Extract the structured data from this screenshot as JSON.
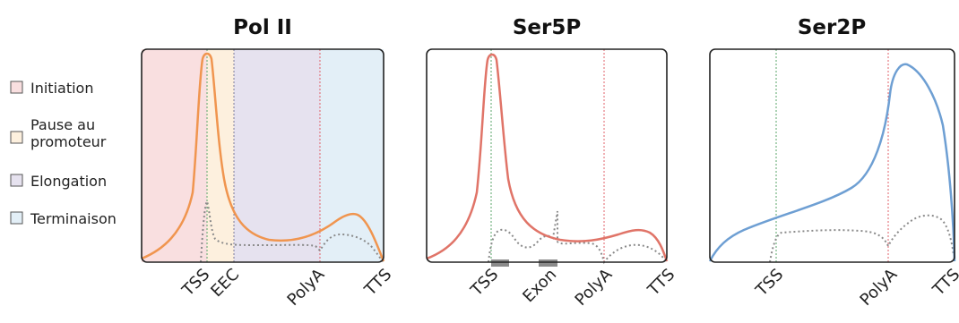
{
  "legend": [
    {
      "label": "Initiation",
      "color": "#f9dfe0"
    },
    {
      "label_lines": [
        "Pause au",
        "promoteur"
      ],
      "color": "#fdf0de"
    },
    {
      "label": "Elongation",
      "color": "#e6e2ef"
    },
    {
      "label": "Terminaison",
      "color": "#e3eff7"
    }
  ],
  "panels": [
    {
      "title": "Pol II",
      "curve_color": "#f0954f",
      "ticks": [
        "TSS",
        "EEC",
        "PolyA",
        "TTS"
      ]
    },
    {
      "title": "Ser5P",
      "curve_color": "#e07468",
      "ticks": [
        "TSS",
        "Exon",
        "PolyA",
        "TTS"
      ]
    },
    {
      "title": "Ser2P",
      "curve_color": "#6e9fd3",
      "ticks": [
        "TSS",
        "PolyA",
        "TTS"
      ]
    }
  ],
  "colors": {
    "tss_line": "#5aa46a",
    "polya_line": "#e0606a",
    "eec_line": "#7a7a9a",
    "dotted_curve": "#8a8a8a",
    "exon_bar": "#8a8a8a"
  }
}
